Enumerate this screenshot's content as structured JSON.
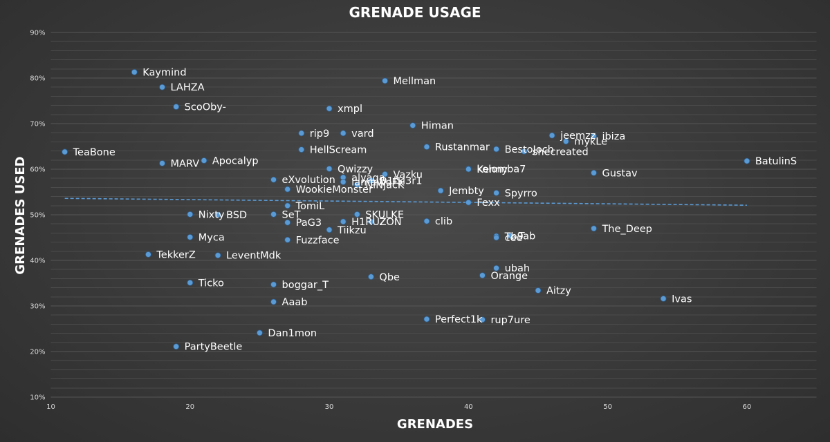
{
  "chart_data": {
    "type": "scatter",
    "title": "GRENADE USAGE",
    "xlabel": "GRENADES",
    "ylabel": "GRENADES USED",
    "xlim": [
      10,
      65
    ],
    "ylim": [
      10,
      90
    ],
    "xticks": [
      "10",
      "20",
      "30",
      "40",
      "50",
      "60"
    ],
    "yticks": [
      "10%",
      "20%",
      "30%",
      "40%",
      "50%",
      "60%",
      "70%",
      "80%",
      "90%"
    ],
    "grid": true,
    "legend": "none",
    "trendline": {
      "type": "linear",
      "start": [
        11,
        53.6
      ],
      "end": [
        60,
        52.1
      ],
      "style": "dashed"
    },
    "point_color": "#5b9bd5",
    "points": [
      {
        "label": "Kaymind",
        "x": 16,
        "y": 81.3
      },
      {
        "label": "Mellman",
        "x": 34,
        "y": 79.4
      },
      {
        "label": "LAHZA",
        "x": 18,
        "y": 78
      },
      {
        "label": "ScoOby-",
        "x": 19,
        "y": 73.7
      },
      {
        "label": "xmpl",
        "x": 30,
        "y": 73.3
      },
      {
        "label": "Himan",
        "x": 36,
        "y": 69.6
      },
      {
        "label": "rip9",
        "x": 28,
        "y": 67.9
      },
      {
        "label": "vard",
        "x": 31,
        "y": 67.9
      },
      {
        "label": "jeemzz",
        "x": 46,
        "y": 67.4
      },
      {
        "label": "ibiza",
        "x": 49,
        "y": 67.3
      },
      {
        "label": "mykLe",
        "x": 47,
        "y": 66.1
      },
      {
        "label": "Rustanmar",
        "x": 37,
        "y": 64.9
      },
      {
        "label": "BestoJoch",
        "x": 42,
        "y": 64.4
      },
      {
        "label": "HellScream",
        "x": 28,
        "y": 64.3
      },
      {
        "label": "shecreated",
        "x": 44,
        "y": 63.9
      },
      {
        "label": "TeaBone",
        "x": 11,
        "y": 63.8
      },
      {
        "label": "BatulinS",
        "x": 60,
        "y": 61.8
      },
      {
        "label": "Apocalyp",
        "x": 21,
        "y": 61.9
      },
      {
        "label": "MARV",
        "x": 18,
        "y": 61.3
      },
      {
        "label": "Qwizzy",
        "x": 30,
        "y": 60.1
      },
      {
        "label": "kolomba7",
        "x": 40,
        "y": 60.1
      },
      {
        "label": "Kenny",
        "x": 40,
        "y": 60
      },
      {
        "label": "Gustav",
        "x": 49,
        "y": 59.2
      },
      {
        "label": "Vazku",
        "x": 34,
        "y": 58.9
      },
      {
        "label": "alyaga",
        "x": 31,
        "y": 58.2
      },
      {
        "label": "D1lSl3r1",
        "x": 33,
        "y": 57.5
      },
      {
        "label": "eXvolution",
        "x": 26,
        "y": 57.7
      },
      {
        "label": "lamaWoFK",
        "x": 31,
        "y": 57.2
      },
      {
        "label": "NiNjacK",
        "x": 32,
        "y": 56.6
      },
      {
        "label": "WookieMonster",
        "x": 27,
        "y": 55.6
      },
      {
        "label": "Jembty",
        "x": 38,
        "y": 55.3
      },
      {
        "label": "Spyrro",
        "x": 42,
        "y": 54.8
      },
      {
        "label": "Fexx",
        "x": 40,
        "y": 52.7
      },
      {
        "label": "TomiL",
        "x": 27,
        "y": 52
      },
      {
        "label": "Nixty",
        "x": 20,
        "y": 50.1
      },
      {
        "label": "BSD",
        "x": 22,
        "y": 50
      },
      {
        "label": "SeT",
        "x": 26,
        "y": 50.1
      },
      {
        "label": "SKULKE",
        "x": 32,
        "y": 50.1
      },
      {
        "label": "clib",
        "x": 37,
        "y": 48.6
      },
      {
        "label": "PaG3",
        "x": 27,
        "y": 48.3
      },
      {
        "label": "H1RUZ",
        "x": 31,
        "y": 48.5
      },
      {
        "label": "ZON",
        "x": 33,
        "y": 48.5
      },
      {
        "label": "The_Deep",
        "x": 49,
        "y": 47
      },
      {
        "label": "Tiikzu",
        "x": 30,
        "y": 46.7
      },
      {
        "label": "Tab",
        "x": 43,
        "y": 45.4
      },
      {
        "label": "Tb9",
        "x": 42,
        "y": 45.3
      },
      {
        "label": "cee",
        "x": 42,
        "y": 45
      },
      {
        "label": "Myca",
        "x": 20,
        "y": 45.1
      },
      {
        "label": "Fuzzface",
        "x": 27,
        "y": 44.5
      },
      {
        "label": "TekkerZ",
        "x": 17,
        "y": 41.3
      },
      {
        "label": "LeventMdk",
        "x": 22,
        "y": 41.1
      },
      {
        "label": "ubah",
        "x": 42,
        "y": 38.3
      },
      {
        "label": "Orange",
        "x": 41,
        "y": 36.7
      },
      {
        "label": "Qbe",
        "x": 33,
        "y": 36.4
      },
      {
        "label": "Ticko",
        "x": 20,
        "y": 35.1
      },
      {
        "label": "boggar_T",
        "x": 26,
        "y": 34.7
      },
      {
        "label": "Aitzy",
        "x": 45,
        "y": 33.4
      },
      {
        "label": "Ivas",
        "x": 54,
        "y": 31.6
      },
      {
        "label": "Aaab",
        "x": 26,
        "y": 30.9
      },
      {
        "label": "Perfect1k",
        "x": 37,
        "y": 27.1
      },
      {
        "label": "rup7ure",
        "x": 41,
        "y": 27
      },
      {
        "label": "Dan1mon",
        "x": 25,
        "y": 24.1
      },
      {
        "label": "PartyBeetle",
        "x": 19,
        "y": 21.1
      }
    ]
  }
}
